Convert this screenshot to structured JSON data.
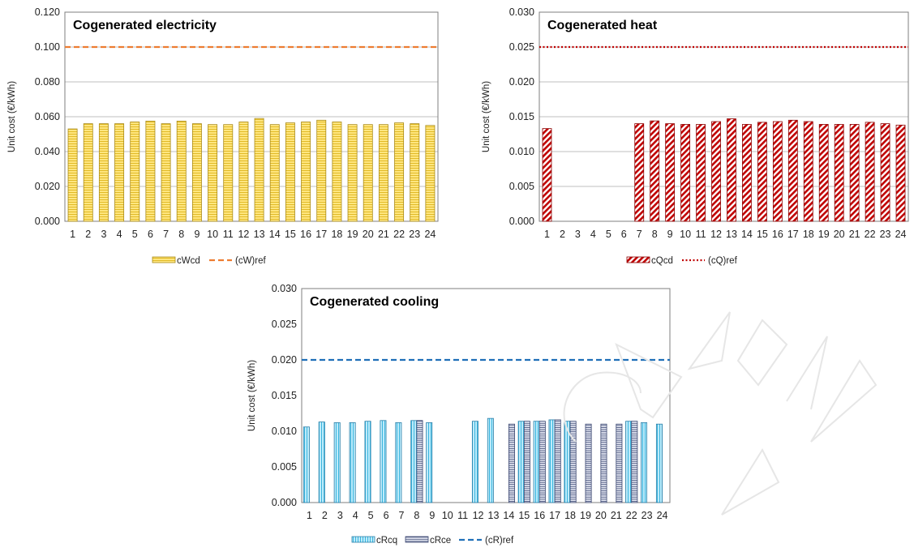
{
  "colors": {
    "electricity_bar": "#FFE680",
    "electricity_stripe": "#D4A800",
    "electricity_ref": "#ED7D31",
    "heat_bar": "#C00000",
    "heat_ref": "#C00000",
    "cooling_q_bar": "#BDEBFA",
    "cooling_q_stripe": "#1CA8D8",
    "cooling_e_bar": "#E3E6F2",
    "cooling_e_stripe": "#3A4670",
    "cooling_ref": "#1F6FB8",
    "grid": "#BFBFBF"
  },
  "chart_data": [
    {
      "type": "bar",
      "title": "Cogenerated electricity",
      "ylabel": "Unit cost (€/kWh)",
      "ylim": [
        0,
        0.12
      ],
      "yticks": [
        "0.000",
        "0.020",
        "0.040",
        "0.060",
        "0.080",
        "0.100",
        "0.120"
      ],
      "categories": [
        "1",
        "2",
        "3",
        "4",
        "5",
        "6",
        "7",
        "8",
        "9",
        "10",
        "11",
        "12",
        "13",
        "14",
        "15",
        "16",
        "17",
        "18",
        "19",
        "20",
        "21",
        "22",
        "23",
        "24"
      ],
      "grid": true,
      "legend": "bottom",
      "series": [
        {
          "name": "cWcd",
          "values": [
            0.053,
            0.056,
            0.056,
            0.056,
            0.057,
            0.0575,
            0.056,
            0.0575,
            0.056,
            0.0555,
            0.0555,
            0.057,
            0.059,
            0.0555,
            0.0565,
            0.057,
            0.058,
            0.057,
            0.0555,
            0.0555,
            0.0555,
            0.0565,
            0.056,
            0.055
          ]
        }
      ],
      "reference": {
        "name": "(cW)ref",
        "value": 0.1,
        "style": "dashed"
      }
    },
    {
      "type": "bar",
      "title": "Cogenerated heat",
      "ylabel": "Unit cost (€/kWh)",
      "ylim": [
        0,
        0.03
      ],
      "yticks": [
        "0.000",
        "0.005",
        "0.010",
        "0.015",
        "0.020",
        "0.025",
        "0.030"
      ],
      "categories": [
        "1",
        "2",
        "3",
        "4",
        "5",
        "6",
        "7",
        "8",
        "9",
        "10",
        "11",
        "12",
        "13",
        "14",
        "15",
        "16",
        "17",
        "18",
        "19",
        "20",
        "21",
        "22",
        "23",
        "24"
      ],
      "grid": true,
      "legend": "bottom",
      "series": [
        {
          "name": "cQcd",
          "values": [
            0.0133,
            0,
            0,
            0,
            0,
            0,
            0.014,
            0.0144,
            0.014,
            0.0139,
            0.0139,
            0.0143,
            0.0147,
            0.0139,
            0.0142,
            0.0143,
            0.0145,
            0.0143,
            0.0139,
            0.0139,
            0.0139,
            0.0142,
            0.014,
            0.0138
          ]
        }
      ],
      "reference": {
        "name": "(cQ)ref",
        "value": 0.025,
        "style": "dotted"
      }
    },
    {
      "type": "bar",
      "title": "Cogenerated cooling",
      "ylabel": "Unit cost (€/kWh)",
      "ylim": [
        0,
        0.03
      ],
      "yticks": [
        "0.000",
        "0.005",
        "0.010",
        "0.015",
        "0.020",
        "0.025",
        "0.030"
      ],
      "categories": [
        "1",
        "2",
        "3",
        "4",
        "5",
        "6",
        "7",
        "8",
        "9",
        "10",
        "11",
        "12",
        "13",
        "14",
        "15",
        "16",
        "17",
        "18",
        "19",
        "20",
        "21",
        "22",
        "23",
        "24"
      ],
      "grid": false,
      "legend": "bottom",
      "series": [
        {
          "name": "cRcq",
          "values": [
            0.0106,
            0.0113,
            0.0112,
            0.0112,
            0.0114,
            0.0115,
            0.0112,
            0.0115,
            0.0112,
            0,
            0,
            0.0114,
            0.0118,
            0,
            0.0114,
            0.0114,
            0.0116,
            0.0114,
            0,
            0,
            0,
            0.0114,
            0.0112,
            0.011
          ]
        },
        {
          "name": "cRce",
          "values": [
            0,
            0,
            0,
            0,
            0,
            0,
            0,
            0.0115,
            0,
            0,
            0,
            0,
            0,
            0.011,
            0.0114,
            0.0114,
            0.0116,
            0.0114,
            0.011,
            0.011,
            0.011,
            0.0114,
            0,
            0
          ]
        }
      ],
      "reference": {
        "name": "(cR)ref",
        "value": 0.02,
        "style": "dashed"
      }
    }
  ]
}
